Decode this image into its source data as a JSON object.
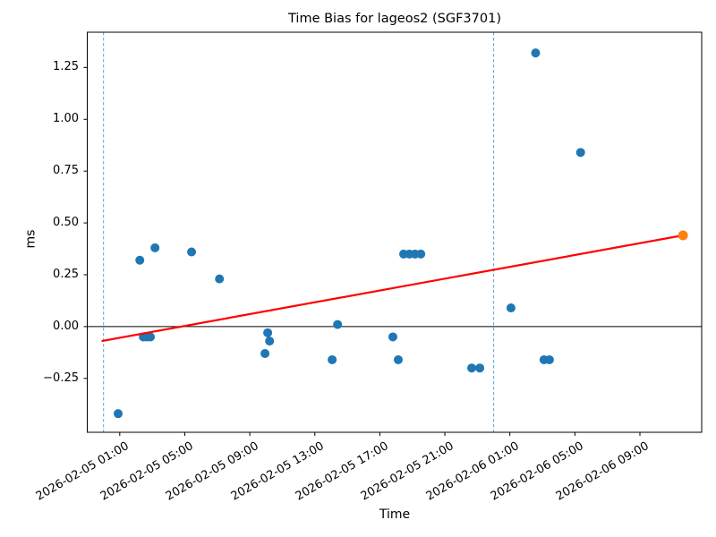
{
  "chart_data": {
    "type": "scatter",
    "title": "Time Bias for lageos2 (SGF3701)",
    "xlabel": "Time",
    "ylabel": "ms",
    "x_unit": "datetime (YYYY-MM-DD HH:MM)",
    "xlim": [
      "2026-02-04 23:00",
      "2026-02-06 12:48"
    ],
    "ylim": [
      -0.51,
      1.42
    ],
    "x_ticks": [
      "2026-02-05 01:00",
      "2026-02-05 05:00",
      "2026-02-05 09:00",
      "2026-02-05 13:00",
      "2026-02-05 17:00",
      "2026-02-05 21:00",
      "2026-02-06 01:00",
      "2026-02-06 05:00",
      "2026-02-06 09:00"
    ],
    "y_ticks": [
      -0.25,
      0.0,
      0.25,
      0.5,
      0.75,
      1.0,
      1.25
    ],
    "y_tick_labels": [
      "−0.25",
      "0.00",
      "0.25",
      "0.50",
      "0.75",
      "1.00",
      "1.25"
    ],
    "grid": false,
    "legend": "none",
    "series": [
      {
        "name": "time-bias-observations",
        "color": "#1f77b4",
        "marker": "circle",
        "points": [
          {
            "t": "2026-02-05 00:54",
            "v": -0.42
          },
          {
            "t": "2026-02-05 02:14",
            "v": 0.32
          },
          {
            "t": "2026-02-05 02:27",
            "v": -0.05
          },
          {
            "t": "2026-02-05 02:40",
            "v": -0.05
          },
          {
            "t": "2026-02-05 02:53",
            "v": -0.05
          },
          {
            "t": "2026-02-05 03:10",
            "v": 0.38
          },
          {
            "t": "2026-02-05 05:25",
            "v": 0.36
          },
          {
            "t": "2026-02-05 07:08",
            "v": 0.23
          },
          {
            "t": "2026-02-05 09:56",
            "v": -0.13
          },
          {
            "t": "2026-02-05 10:06",
            "v": -0.03
          },
          {
            "t": "2026-02-05 10:13",
            "v": -0.07
          },
          {
            "t": "2026-02-05 14:04",
            "v": -0.16
          },
          {
            "t": "2026-02-05 14:24",
            "v": 0.01
          },
          {
            "t": "2026-02-05 17:48",
            "v": -0.05
          },
          {
            "t": "2026-02-05 18:08",
            "v": -0.16
          },
          {
            "t": "2026-02-05 18:28",
            "v": 0.35
          },
          {
            "t": "2026-02-05 18:49",
            "v": 0.35
          },
          {
            "t": "2026-02-05 19:10",
            "v": 0.35
          },
          {
            "t": "2026-02-05 19:31",
            "v": 0.35
          },
          {
            "t": "2026-02-05 22:39",
            "v": -0.2
          },
          {
            "t": "2026-02-05 23:09",
            "v": -0.2
          },
          {
            "t": "2026-02-06 01:04",
            "v": 0.09
          },
          {
            "t": "2026-02-06 02:35",
            "v": 1.32
          },
          {
            "t": "2026-02-06 03:06",
            "v": -0.16
          },
          {
            "t": "2026-02-06 03:26",
            "v": -0.16
          },
          {
            "t": "2026-02-06 05:21",
            "v": 0.84
          }
        ]
      },
      {
        "name": "latest-point",
        "color": "#ff7f0e",
        "marker": "circle",
        "points": [
          {
            "t": "2026-02-06 11:39",
            "v": 0.44
          }
        ]
      }
    ],
    "trend_line": {
      "name": "linear-fit",
      "color": "#ff0000",
      "start": {
        "t": "2026-02-04 23:53",
        "v": -0.07
      },
      "end": {
        "t": "2026-02-06 11:39",
        "v": 0.44
      }
    },
    "reference_lines": {
      "zero_line": {
        "y": 0.0,
        "color": "#000000"
      },
      "day_boundaries": [
        "2026-02-05 00:00",
        "2026-02-06 00:00"
      ],
      "day_boundary_color": "#6baed6"
    }
  }
}
